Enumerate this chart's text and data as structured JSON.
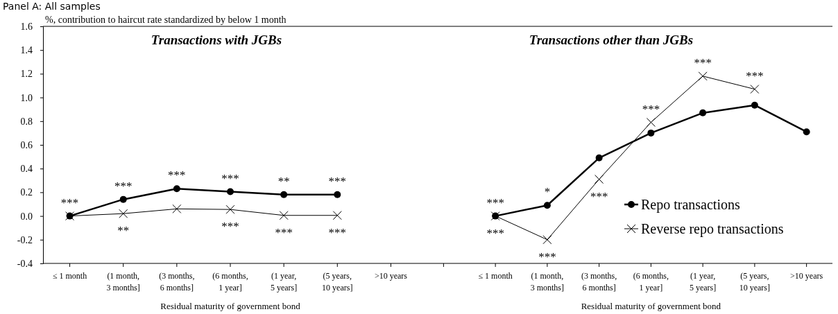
{
  "chart_data": [
    {
      "type": "line",
      "title": "Transactions with JGBs",
      "ylabel": "%, contribution to haircut rate standardized by below 1 month",
      "xlabel": "Residual maturity of government bond",
      "categories": [
        "≤ 1 month",
        "(1 month, 3 months]",
        "(3 months, 6 months]",
        "(6 months, 1 year]",
        "(1 year, 5 years]",
        "(5 years, 10 years]",
        ">10 years"
      ],
      "series": [
        {
          "color": "#000000",
          "marker": "circle",
          "values": [
            0,
            0.14,
            0.23,
            0.205,
            0.18,
            0.18,
            null
          ]
        },
        {
          "color": "#000000",
          "marker": "cross",
          "values": [
            0,
            0.02,
            0.06,
            0.055,
            0.005,
            0.005,
            null
          ]
        }
      ],
      "ylim": [
        -0.4,
        1.6
      ],
      "yticks": [
        {
          "value": -0.4,
          "label": "-0.4"
        },
        {
          "value": -0.2,
          "label": "-0.2"
        },
        {
          "value": 0,
          "label": "0.0"
        },
        {
          "value": 0.2,
          "label": "0.2"
        },
        {
          "value": 0.4,
          "label": "0.4"
        },
        {
          "value": 0.6,
          "label": "0.6"
        },
        {
          "value": 0.8,
          "label": "0.8"
        },
        {
          "value": 1,
          "label": "1.0"
        },
        {
          "value": 1.2,
          "label": "1.2"
        },
        {
          "value": 1.4,
          "label": "1.4"
        },
        {
          "value": 1.6,
          "label": "1.6"
        }
      ],
      "grid": false,
      "legend": false,
      "annotations": [
        "Panel A:  All samples",
        {
          "text": "***",
          "x": "≤ 1 month",
          "y": 0
        },
        {
          "text": "***",
          "x": "(1 month, 3 months]",
          "y": 0.14
        },
        {
          "text": "**",
          "x": "(1 month, 3 months]",
          "y": 0.02
        },
        {
          "text": "***",
          "x": "(3 months, 6 months]",
          "y": 0.23
        },
        {
          "text": "***",
          "x": "(6 months, 1 year]",
          "y": 0.205
        },
        {
          "text": "***",
          "x": "(6 months, 1 year]",
          "y": 0.055
        },
        {
          "text": "**",
          "x": "(1 year, 5 years]",
          "y": 0.18
        },
        {
          "text": "***",
          "x": "(1 year, 5 years]",
          "y": 0.005
        },
        {
          "text": "***",
          "x": "(5 years, 10 years]",
          "y": 0.18
        },
        {
          "text": "***",
          "x": "(5 years, 10 years]",
          "y": 0.005
        }
      ]
    },
    {
      "type": "line",
      "title": "Transactions other than JGBs",
      "xlabel": "Residual maturity of government bond",
      "categories": [
        null,
        "≤ 1 month",
        "(1 month, 3 months]",
        "(3 months, 6 months]",
        "(6 months, 1 year]",
        "(1 year, 5 years]",
        "(5 years, 10 years]",
        ">10 years"
      ],
      "series": [
        {
          "name": "Repo transactions",
          "color": "#000000",
          "marker": "circle",
          "values": [
            null,
            0,
            0.09,
            0.49,
            0.7,
            0.87,
            0.935,
            0.71
          ]
        },
        {
          "name": "Reverse repo transactions",
          "color": "#000000",
          "marker": "cross",
          "values": [
            null,
            0,
            -0.2,
            0.31,
            0.79,
            1.18,
            1.07,
            null
          ]
        }
      ],
      "ylim": [
        -0.4,
        1.6
      ],
      "tick_labels": "x",
      "grid": false,
      "legend": "bottom right",
      "annotations": [
        {
          "text": "***",
          "x": "≤ 1 month",
          "y": 0
        },
        {
          "text": "***",
          "x": "≤ 1 month",
          "y": 0
        },
        {
          "text": "*",
          "x": "(1 month, 3 months]",
          "y": 0.09
        },
        {
          "text": "***",
          "x": "(1 month, 3 months]",
          "y": -0.2
        },
        {
          "text": "***",
          "x": "(3 months, 6 months]",
          "y": 0.31
        },
        {
          "text": "***",
          "x": "(6 months, 1 year]",
          "y": 0.79
        },
        {
          "text": "***",
          "x": "(1 year, 5 years]",
          "y": 1.18
        },
        {
          "text": "***",
          "x": "(5 years, 10 years]",
          "y": 1.07
        }
      ]
    }
  ]
}
